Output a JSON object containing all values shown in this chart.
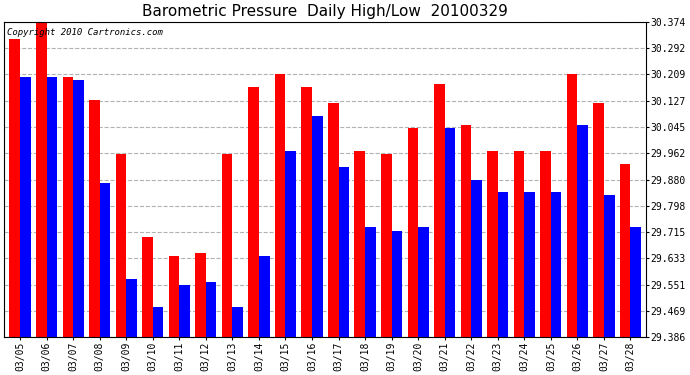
{
  "title": "Barometric Pressure  Daily High/Low  20100329",
  "copyright": "Copyright 2010 Cartronics.com",
  "dates": [
    "03/05",
    "03/06",
    "03/07",
    "03/08",
    "03/09",
    "03/10",
    "03/11",
    "03/12",
    "03/13",
    "03/14",
    "03/15",
    "03/16",
    "03/17",
    "03/18",
    "03/19",
    "03/20",
    "03/21",
    "03/22",
    "03/23",
    "03/24",
    "03/25",
    "03/26",
    "03/27",
    "03/28"
  ],
  "highs": [
    30.32,
    30.37,
    30.2,
    30.13,
    29.96,
    29.7,
    29.64,
    29.65,
    29.96,
    30.17,
    30.21,
    30.17,
    30.12,
    29.97,
    29.96,
    30.04,
    30.18,
    30.05,
    29.97,
    29.97,
    29.97,
    30.21,
    30.12,
    29.93
  ],
  "lows": [
    30.2,
    30.2,
    30.19,
    29.87,
    29.57,
    29.48,
    29.55,
    29.56,
    29.48,
    29.64,
    29.97,
    30.08,
    29.92,
    29.73,
    29.72,
    29.73,
    30.04,
    29.88,
    29.84,
    29.84,
    29.84,
    30.05,
    29.83,
    29.73
  ],
  "ymin": 29.386,
  "ymax": 30.374,
  "yticks": [
    29.386,
    29.469,
    29.551,
    29.633,
    29.715,
    29.798,
    29.88,
    29.962,
    30.045,
    30.127,
    30.209,
    30.292,
    30.374
  ],
  "high_color": "#FF0000",
  "low_color": "#0000FF",
  "bar_width": 0.4,
  "background_color": "#FFFFFF",
  "plot_bg_color": "#FFFFFF",
  "grid_color": "#AAAAAA",
  "title_fontsize": 11,
  "tick_fontsize": 7,
  "copyright_fontsize": 6.5
}
